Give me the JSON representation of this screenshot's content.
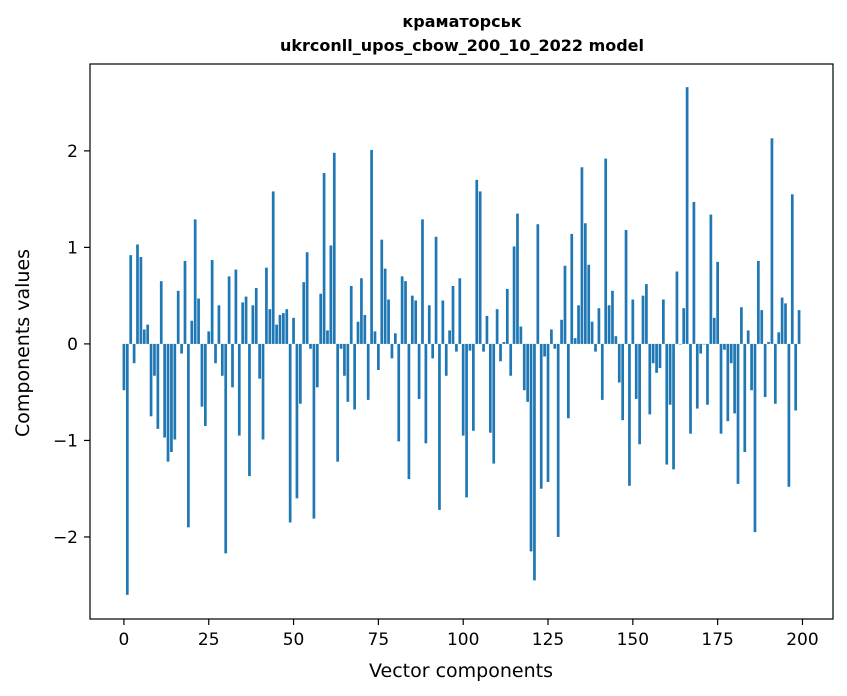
{
  "chart_data": {
    "type": "bar",
    "title": "краматорськ",
    "subtitle": "ukrconll_upos_cbow_200_10_2022 model",
    "xlabel": "Vector components",
    "ylabel": "Components values",
    "xlim": [
      -10,
      209
    ],
    "ylim": [
      -2.85,
      2.9
    ],
    "xticks": [
      0,
      25,
      50,
      75,
      100,
      125,
      150,
      175,
      200
    ],
    "xtick_labels": [
      "0",
      "25",
      "50",
      "75",
      "100",
      "125",
      "150",
      "175",
      "200"
    ],
    "yticks": [
      -2,
      -1,
      0,
      1,
      2
    ],
    "ytick_labels": [
      "−2",
      "−1",
      "0",
      "1",
      "2"
    ],
    "grid": false,
    "color": "#1f77b4",
    "values": [
      -0.48,
      -2.6,
      0.92,
      -0.2,
      1.03,
      0.9,
      0.15,
      0.2,
      -0.75,
      -0.33,
      -0.88,
      0.65,
      -0.97,
      -1.22,
      -1.12,
      -0.99,
      0.55,
      -0.1,
      0.86,
      -1.9,
      0.24,
      1.29,
      0.47,
      -0.65,
      -0.85,
      0.13,
      0.87,
      -0.2,
      0.4,
      -0.33,
      -2.17,
      0.7,
      -0.45,
      0.77,
      -0.95,
      0.43,
      0.49,
      -1.37,
      0.4,
      0.58,
      -0.36,
      -0.99,
      0.79,
      0.36,
      1.58,
      0.2,
      0.3,
      0.32,
      0.36,
      -1.85,
      0.27,
      -1.6,
      -0.62,
      0.64,
      0.95,
      -0.05,
      -1.81,
      -0.45,
      0.52,
      1.77,
      0.14,
      1.02,
      1.98,
      -1.22,
      -0.05,
      -0.33,
      -0.6,
      0.6,
      -0.68,
      0.23,
      0.68,
      0.3,
      -0.58,
      2.01,
      0.13,
      -0.27,
      1.08,
      0.78,
      0.46,
      -0.15,
      0.11,
      -1.01,
      0.7,
      0.65,
      -1.4,
      0.5,
      0.45,
      -0.57,
      1.29,
      -1.03,
      0.4,
      -0.15,
      1.11,
      -1.72,
      0.45,
      -0.33,
      0.14,
      0.6,
      -0.08,
      0.68,
      -0.95,
      -1.59,
      -0.07,
      -0.9,
      1.7,
      1.58,
      -0.08,
      0.29,
      -0.92,
      -1.24,
      0.36,
      -0.18,
      0.02,
      0.57,
      -0.33,
      1.01,
      1.35,
      0.18,
      -0.48,
      -0.6,
      -2.15,
      -2.45,
      1.24,
      -1.5,
      -0.13,
      -1.43,
      0.15,
      -0.05,
      -2.0,
      0.25,
      0.81,
      -0.77,
      1.14,
      0.06,
      0.4,
      1.83,
      1.25,
      0.82,
      0.23,
      -0.08,
      0.37,
      -0.58,
      1.92,
      0.4,
      0.55,
      0.08,
      -0.4,
      -0.79,
      1.18,
      -1.47,
      0.46,
      -0.57,
      -1.04,
      0.5,
      0.62,
      -0.73,
      -0.2,
      -0.3,
      -0.25,
      0.46,
      -1.25,
      -0.63,
      -1.3,
      0.75,
      0.0,
      0.37,
      2.66,
      -0.93,
      1.47,
      -0.67,
      -0.1,
      0.0,
      -0.63,
      1.34,
      0.27,
      0.85,
      -0.93,
      -0.06,
      -0.8,
      -0.2,
      -0.72,
      -1.45,
      0.38,
      -1.12,
      0.14,
      -0.48,
      -1.95,
      0.86,
      0.35,
      -0.55,
      0.02,
      2.13,
      -0.62,
      0.12,
      0.48,
      0.42,
      -1.48,
      1.55,
      -0.69,
      0.35
    ]
  }
}
